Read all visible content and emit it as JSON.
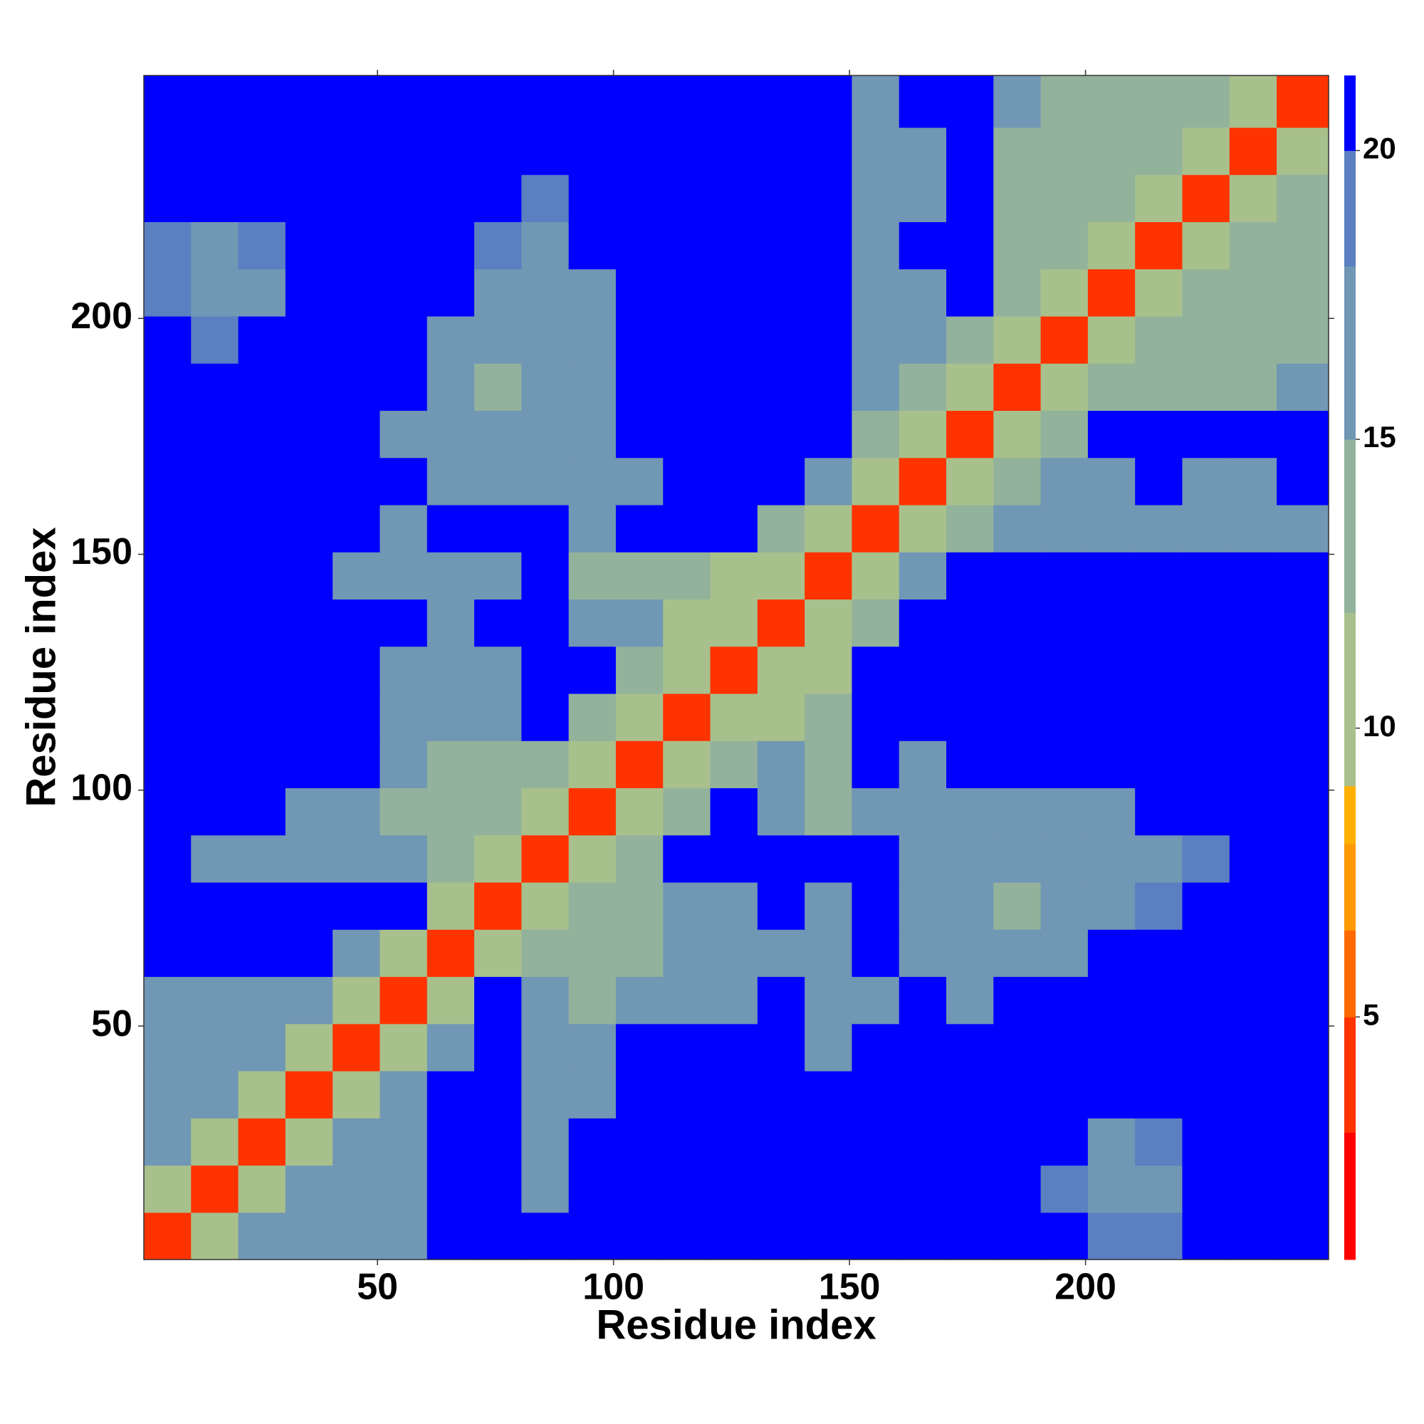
{
  "chart_data": {
    "type": "heatmap",
    "xlabel": "Residue index",
    "ylabel": "Residue index",
    "xlim": [
      0.5,
      251.5
    ],
    "ylim": [
      0.5,
      251.5
    ],
    "xticks": [
      50,
      100,
      150,
      200
    ],
    "yticks": [
      50,
      100,
      150,
      200
    ],
    "bins": [
      0.5,
      10.5,
      20.5,
      30.5,
      40.5,
      50.5,
      60.5,
      70.5,
      80.5,
      90.5,
      100.5,
      110.5,
      120.5,
      130.5,
      140.5,
      150.5,
      160.5,
      170.5,
      180.5,
      190.5,
      200.5,
      210.5,
      220.5,
      230.5,
      240.5,
      251.5
    ],
    "color_levels": [
      0.8,
      3,
      5,
      6.5,
      8,
      9,
      12,
      15,
      18,
      20,
      21.3
    ],
    "level_colors": [
      "#ff0000",
      "#ff3300",
      "#ff6a00",
      "#ff9900",
      "#ffb000",
      "#a8c08c",
      "#92b29c",
      "#7097b4",
      "#5a80c2",
      "#0000ff"
    ],
    "cticks": [
      5,
      10,
      15,
      20
    ],
    "z": [
      [
        4,
        11,
        15,
        15,
        15,
        17,
        21,
        21,
        21,
        21,
        21,
        21,
        21,
        21,
        21,
        21,
        21,
        21,
        21,
        21,
        19,
        18,
        21,
        21,
        21
      ],
      [
        11,
        4,
        11,
        15,
        15,
        15,
        21,
        21,
        17,
        21,
        21,
        21,
        21,
        21,
        21,
        21,
        21,
        21,
        21,
        18,
        16,
        17,
        21,
        21,
        21
      ],
      [
        15,
        11,
        4,
        11,
        15,
        15,
        21,
        21,
        17,
        21,
        21,
        21,
        21,
        21,
        21,
        21,
        21,
        21,
        21,
        21,
        17,
        18,
        21,
        21,
        21
      ],
      [
        15,
        15,
        11,
        4,
        11,
        16,
        21,
        21,
        17,
        17,
        21,
        21,
        21,
        21,
        21,
        21,
        21,
        21,
        21,
        21,
        21,
        21,
        21,
        21,
        21
      ],
      [
        15,
        15,
        15,
        11,
        4,
        11,
        16,
        21,
        15,
        15,
        21,
        21,
        21,
        21,
        16,
        21,
        21,
        21,
        21,
        21,
        21,
        21,
        21,
        21,
        21
      ],
      [
        17,
        15,
        15,
        16,
        11,
        4,
        11,
        21,
        16,
        14,
        15,
        16,
        17,
        21,
        15,
        17,
        21,
        16,
        21,
        21,
        21,
        21,
        21,
        21,
        21
      ],
      [
        21,
        21,
        21,
        21,
        16,
        11,
        4,
        11,
        13,
        13,
        14,
        15,
        17,
        17,
        16,
        21,
        17,
        15,
        15,
        17,
        21,
        21,
        21,
        21,
        21
      ],
      [
        21,
        21,
        21,
        21,
        21,
        21,
        11,
        4,
        11,
        12,
        14,
        15,
        17,
        21,
        17,
        21,
        17,
        15,
        13,
        16,
        17,
        18,
        21,
        21,
        21
      ],
      [
        21,
        17,
        17,
        17,
        15,
        16,
        13,
        11,
        4,
        11,
        13,
        21,
        21,
        21,
        21,
        21,
        16,
        16,
        15,
        16,
        16,
        16,
        18,
        21,
        21
      ],
      [
        21,
        21,
        21,
        17,
        15,
        14,
        13,
        12,
        11,
        4,
        11,
        14,
        21,
        15,
        13,
        16,
        16,
        17,
        16,
        17,
        17,
        21,
        21,
        21,
        21
      ],
      [
        21,
        21,
        21,
        21,
        21,
        15,
        14,
        14,
        13,
        11,
        4,
        11,
        13,
        15,
        14,
        21,
        15,
        21,
        21,
        21,
        21,
        21,
        21,
        21,
        21
      ],
      [
        21,
        21,
        21,
        21,
        21,
        16,
        15,
        15,
        21,
        14,
        11,
        4,
        11,
        11,
        14,
        21,
        21,
        21,
        21,
        21,
        21,
        21,
        21,
        21,
        21
      ],
      [
        21,
        21,
        21,
        21,
        21,
        17,
        17,
        17,
        21,
        21,
        13,
        11,
        4,
        11,
        11,
        21,
        21,
        21,
        21,
        21,
        21,
        21,
        21,
        21,
        21
      ],
      [
        21,
        21,
        21,
        21,
        21,
        21,
        17,
        21,
        21,
        15,
        15,
        11,
        11,
        4,
        11,
        12,
        21,
        21,
        21,
        21,
        21,
        21,
        21,
        21,
        21
      ],
      [
        21,
        21,
        21,
        21,
        16,
        15,
        16,
        17,
        21,
        13,
        14,
        14,
        11,
        11,
        4,
        11,
        15,
        21,
        21,
        21,
        21,
        21,
        21,
        21,
        21
      ],
      [
        21,
        21,
        21,
        21,
        21,
        17,
        21,
        21,
        21,
        16,
        21,
        21,
        21,
        12,
        11,
        4,
        11,
        14,
        15,
        15,
        16,
        17,
        16,
        15,
        17
      ],
      [
        21,
        21,
        21,
        21,
        21,
        21,
        17,
        17,
        16,
        16,
        15,
        21,
        21,
        21,
        15,
        11,
        4,
        11,
        12,
        16,
        17,
        21,
        17,
        16,
        21
      ],
      [
        21,
        21,
        21,
        21,
        21,
        16,
        15,
        15,
        16,
        17,
        21,
        21,
        21,
        21,
        21,
        14,
        11,
        4,
        11,
        12,
        21,
        21,
        21,
        21,
        21
      ],
      [
        21,
        21,
        21,
        21,
        21,
        21,
        15,
        13,
        15,
        16,
        21,
        21,
        21,
        21,
        21,
        15,
        12,
        11,
        4,
        11,
        14,
        14,
        14,
        14,
        15
      ],
      [
        21,
        18,
        21,
        21,
        21,
        21,
        17,
        16,
        16,
        17,
        21,
        21,
        21,
        21,
        21,
        15,
        16,
        12,
        11,
        4,
        11,
        14,
        14,
        13,
        14
      ],
      [
        19,
        16,
        17,
        21,
        21,
        21,
        21,
        17,
        16,
        17,
        21,
        21,
        21,
        21,
        21,
        16,
        17,
        21,
        14,
        11,
        4,
        11,
        13,
        14,
        14
      ],
      [
        18,
        17,
        18,
        21,
        21,
        21,
        21,
        18,
        16,
        21,
        21,
        21,
        21,
        21,
        21,
        17,
        21,
        21,
        14,
        14,
        11,
        4,
        11,
        13,
        14
      ],
      [
        21,
        21,
        21,
        21,
        21,
        21,
        21,
        21,
        18,
        21,
        21,
        21,
        21,
        21,
        21,
        16,
        17,
        21,
        14,
        14,
        13,
        11,
        4,
        11,
        12
      ],
      [
        21,
        21,
        21,
        21,
        21,
        21,
        21,
        21,
        21,
        21,
        21,
        21,
        21,
        21,
        21,
        15,
        16,
        21,
        14,
        13,
        14,
        13,
        11,
        4,
        11
      ],
      [
        21,
        21,
        21,
        21,
        21,
        21,
        21,
        21,
        21,
        21,
        21,
        21,
        21,
        21,
        21,
        17,
        21,
        21,
        15,
        14,
        14,
        14,
        12,
        11,
        4
      ]
    ]
  }
}
